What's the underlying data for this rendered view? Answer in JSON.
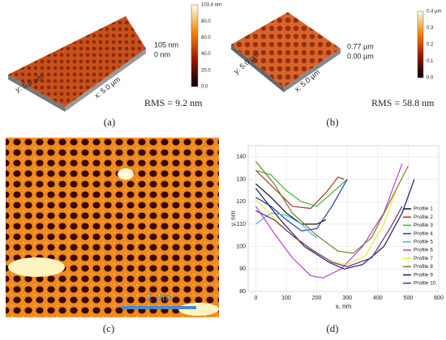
{
  "panels": {
    "a": {
      "label": "(a)",
      "colorbar": [
        "103.4 nm",
        "80.0",
        "60.0",
        "40.0",
        "20.0",
        "0.0"
      ],
      "z_max": "105 nm",
      "z_min": "0 nm",
      "y_axis": "y: 5.0 µm",
      "x_axis": "x: 5.0 µm",
      "rms": "RMS = 9.2 nm"
    },
    "b": {
      "label": "(b)",
      "colorbar": [
        "0.4 µm",
        "0.3",
        "0.2",
        "0.1",
        "0.0"
      ],
      "z_max": "0.77 µm",
      "z_min": "0.00 µm",
      "y_axis": "y: 5.0 µm",
      "x_axis": "x: 5.0 µm",
      "rms": "RMS = 58.8 nm"
    },
    "c": {
      "label": "(c)",
      "scale_bar": "2 µm"
    },
    "d": {
      "label": "(d)"
    }
  },
  "chart_data": {
    "type": "line",
    "xlabel": "x, nm",
    "ylabel": "y, nm",
    "xlim": [
      -25,
      600
    ],
    "xticks": [
      0,
      100,
      200,
      300,
      400,
      500,
      600
    ],
    "ylim": [
      80,
      145
    ],
    "yticks": [
      80,
      90,
      100,
      110,
      120,
      130,
      140
    ],
    "series": [
      {
        "name": "Profile 1",
        "color": "#111111",
        "x": [
          0,
          50,
          100,
          150,
          200,
          230
        ],
        "values": [
          128,
          122,
          115,
          110,
          110,
          112
        ]
      },
      {
        "name": "Profile 2",
        "color": "#a0392b",
        "x": [
          0,
          60,
          120,
          180,
          230,
          270,
          290
        ],
        "values": [
          134,
          126,
          118,
          117,
          124,
          131,
          130
        ]
      },
      {
        "name": "Profile 3",
        "color": "#3cb43c",
        "x": [
          0,
          50,
          100,
          150,
          200,
          250,
          300
        ],
        "values": [
          134,
          132,
          125,
          120,
          118,
          124,
          130
        ]
      },
      {
        "name": "Profile 4",
        "color": "#1f3f9f",
        "x": [
          0,
          50,
          100,
          150,
          200,
          250,
          300
        ],
        "values": [
          122,
          118,
          112,
          107,
          108,
          118,
          130
        ]
      },
      {
        "name": "Profile 5",
        "color": "#40b8e0",
        "x": [
          0,
          50,
          100,
          150,
          180,
          200
        ],
        "values": [
          110,
          115,
          114,
          110,
          106,
          104
        ]
      },
      {
        "name": "Profile 6",
        "color": "#c040d0",
        "x": [
          0,
          60,
          120,
          180,
          220,
          280,
          350,
          420,
          480
        ],
        "values": [
          118,
          106,
          95,
          87,
          86,
          90,
          100,
          115,
          137
        ]
      },
      {
        "name": "Profile 7",
        "color": "#e8e840",
        "x": [
          0,
          80,
          160,
          240,
          300,
          360,
          420,
          460
        ],
        "values": [
          121,
          110,
          100,
          94,
          92,
          96,
          110,
          125
        ]
      },
      {
        "name": "Profile 8",
        "color": "#7a7a20",
        "x": [
          0,
          60,
          120,
          200,
          270,
          320,
          380,
          440,
          500
        ],
        "values": [
          138,
          128,
          115,
          105,
          98,
          97,
          104,
          120,
          136
        ]
      },
      {
        "name": "Profile 9",
        "color": "#1a1a60",
        "x": [
          0,
          80,
          160,
          240,
          290,
          350,
          420,
          480,
          520
        ],
        "values": [
          126,
          112,
          100,
          93,
          90,
          92,
          100,
          115,
          130
        ]
      },
      {
        "name": "Profile 10",
        "color": "#6a2a8a",
        "x": [
          0,
          60,
          120,
          180,
          250,
          300,
          380,
          440,
          480
        ],
        "values": [
          116,
          112,
          105,
          99,
          93,
          91,
          95,
          108,
          118
        ]
      }
    ]
  }
}
